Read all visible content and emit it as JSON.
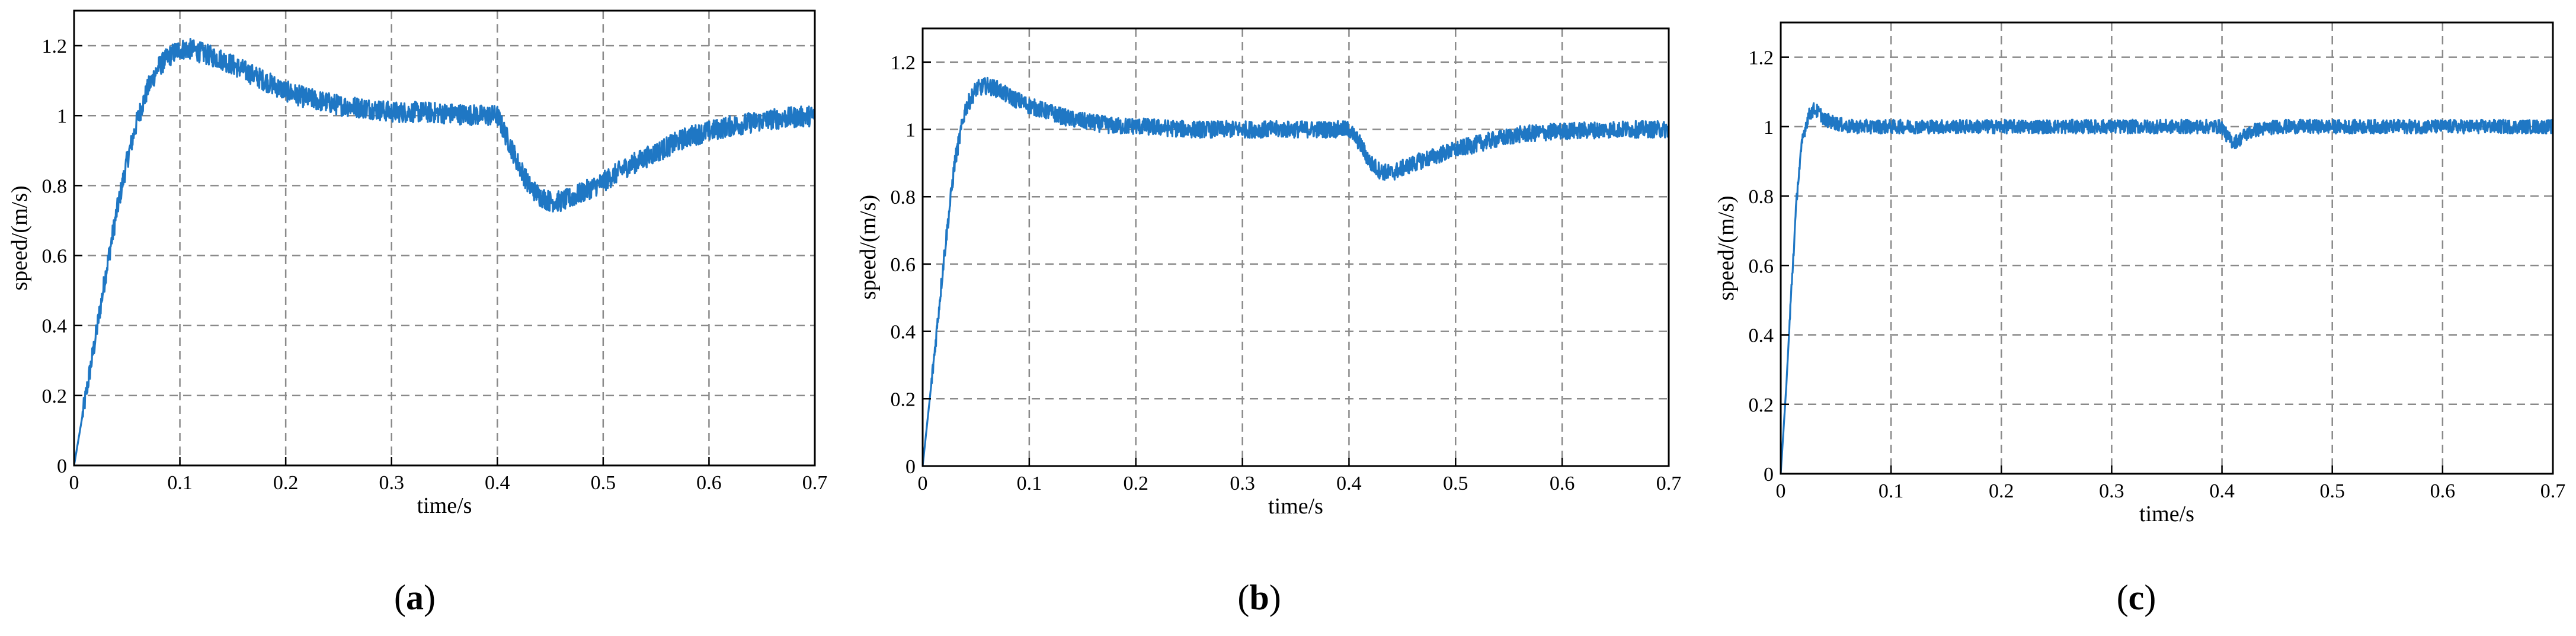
{
  "colors": {
    "trace": "#1f77c4",
    "grid": "#8a8a8a",
    "axis": "#000000"
  },
  "chart_data": [
    {
      "type": "line",
      "caption_letter": "a",
      "xlabel": "time/s",
      "ylabel": "speed/(m/s)",
      "xlim": [
        0,
        0.7
      ],
      "ylim": [
        0,
        1.3
      ],
      "x_ticks": [
        "0",
        "0.1",
        "0.2",
        "0.3",
        "0.4",
        "0.5",
        "0.6",
        "0.7"
      ],
      "y_ticks": [
        "0",
        "0.2",
        "0.4",
        "0.6",
        "0.8",
        "1",
        "1.2"
      ],
      "grid": true,
      "series": [
        {
          "x": [
            0,
            0.01,
            0.02,
            0.03,
            0.04,
            0.05,
            0.06,
            0.07,
            0.08,
            0.09,
            0.1,
            0.11,
            0.12,
            0.14,
            0.16,
            0.18,
            0.2,
            0.22,
            0.25,
            0.28,
            0.3,
            0.33,
            0.36,
            0.39,
            0.4,
            0.41,
            0.42,
            0.43,
            0.44,
            0.45,
            0.46,
            0.47,
            0.48,
            0.5,
            0.52,
            0.54,
            0.56,
            0.58,
            0.6,
            0.62,
            0.64,
            0.66,
            0.68,
            0.7
          ],
          "y": [
            0,
            0.18,
            0.36,
            0.55,
            0.72,
            0.87,
            0.99,
            1.08,
            1.14,
            1.17,
            1.19,
            1.19,
            1.18,
            1.16,
            1.13,
            1.1,
            1.07,
            1.05,
            1.03,
            1.02,
            1.01,
            1.01,
            1.005,
            1.0,
            1.0,
            0.93,
            0.86,
            0.8,
            0.77,
            0.755,
            0.755,
            0.765,
            0.78,
            0.81,
            0.85,
            0.88,
            0.91,
            0.94,
            0.955,
            0.97,
            0.98,
            0.99,
            0.995,
            1.0
          ],
          "noise_amplitude": 0.03
        }
      ]
    },
    {
      "type": "line",
      "caption_letter": "b",
      "xlabel": "time/s",
      "ylabel": "speed/(m/s)",
      "xlim": [
        0,
        0.7
      ],
      "ylim": [
        0,
        1.3
      ],
      "x_ticks": [
        "0",
        "0.1",
        "0.2",
        "0.3",
        "0.4",
        "0.5",
        "0.6",
        "0.7"
      ],
      "y_ticks": [
        "0",
        "0.2",
        "0.4",
        "0.6",
        "0.8",
        "1",
        "1.2"
      ],
      "grid": true,
      "series": [
        {
          "x": [
            0,
            0.01,
            0.02,
            0.03,
            0.04,
            0.05,
            0.06,
            0.07,
            0.08,
            0.1,
            0.12,
            0.14,
            0.16,
            0.18,
            0.2,
            0.25,
            0.3,
            0.35,
            0.4,
            0.41,
            0.42,
            0.43,
            0.44,
            0.45,
            0.47,
            0.5,
            0.53,
            0.56,
            0.6,
            0.65,
            0.7
          ],
          "y": [
            0,
            0.3,
            0.62,
            0.9,
            1.06,
            1.12,
            1.13,
            1.12,
            1.1,
            1.07,
            1.05,
            1.03,
            1.02,
            1.01,
            1.01,
            1.0,
            1.0,
            1.0,
            1.0,
            0.96,
            0.9,
            0.875,
            0.87,
            0.885,
            0.91,
            0.94,
            0.965,
            0.985,
            0.995,
            1.0,
            1.0
          ],
          "noise_amplitude": 0.025
        }
      ]
    },
    {
      "type": "line",
      "caption_letter": "c",
      "xlabel": "time/s",
      "ylabel": "speed/(m/s)",
      "xlim": [
        0,
        0.7
      ],
      "ylim": [
        0,
        1.3
      ],
      "x_ticks": [
        "0",
        "0.1",
        "0.2",
        "0.3",
        "0.4",
        "0.5",
        "0.6",
        "0.7"
      ],
      "y_ticks": [
        "0",
        "0.2",
        "0.4",
        "0.6",
        "0.8",
        "1",
        "1.2"
      ],
      "grid": true,
      "series": [
        {
          "x": [
            0,
            0.005,
            0.01,
            0.015,
            0.02,
            0.025,
            0.03,
            0.035,
            0.04,
            0.05,
            0.06,
            0.1,
            0.2,
            0.3,
            0.4,
            0.405,
            0.41,
            0.415,
            0.42,
            0.43,
            0.45,
            0.5,
            0.6,
            0.7
          ],
          "y": [
            0,
            0.25,
            0.55,
            0.82,
            0.97,
            1.03,
            1.05,
            1.04,
            1.02,
            1.01,
            1.0,
            1.0,
            1.0,
            1.0,
            1.0,
            0.97,
            0.955,
            0.96,
            0.975,
            0.99,
            1.0,
            1.0,
            1.0,
            1.0
          ],
          "noise_amplitude": 0.02
        }
      ]
    }
  ]
}
